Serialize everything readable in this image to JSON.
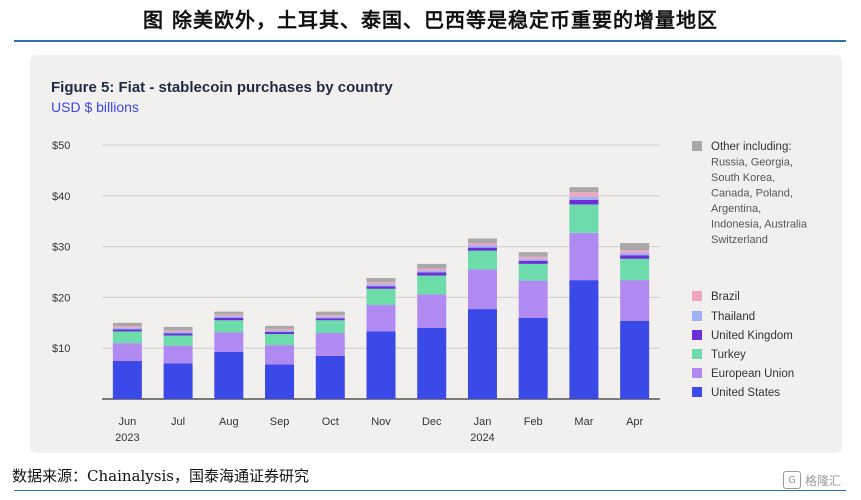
{
  "page": {
    "title": "图  除美欧外，土耳其、泰国、巴西等是稳定币重要的增量地区",
    "source": "数据来源：Chainalysis，国泰海通证券研究",
    "watermark": "格隆汇"
  },
  "chart_data": {
    "type": "bar",
    "stacked": true,
    "title": "Figure 5: Fiat - stablecoin purchases by country",
    "subtitle": "USD $ billions",
    "xlabel": "",
    "ylabel": "",
    "ylim": [
      0,
      50
    ],
    "yticks": [
      10,
      20,
      30,
      40,
      50
    ],
    "ytick_labels": [
      "$10",
      "$20",
      "$30",
      "$40",
      "$50"
    ],
    "grid": true,
    "legend_position": "right",
    "categories": [
      "Jun",
      "Jul",
      "Aug",
      "Sep",
      "Oct",
      "Nov",
      "Dec",
      "Jan",
      "Feb",
      "Mar",
      "Apr"
    ],
    "category_sublabels": [
      "2023",
      "",
      "",
      "",
      "",
      "",
      "",
      "2024",
      "",
      "",
      ""
    ],
    "colors": {
      "United States": "#3a49e8",
      "European Union": "#b08af0",
      "Turkey": "#6cdcaa",
      "United Kingdom": "#6a2fd6",
      "Thailand": "#9fb0f5",
      "Brazil": "#f0a6c0",
      "Other": "#a8a8a8"
    },
    "series": [
      {
        "name": "United States",
        "values": [
          7.5,
          7.0,
          9.3,
          6.8,
          8.5,
          13.3,
          14.0,
          17.7,
          16.0,
          23.4,
          15.4
        ]
      },
      {
        "name": "European Union",
        "values": [
          3.5,
          3.5,
          3.8,
          3.8,
          4.5,
          5.2,
          6.6,
          7.8,
          7.3,
          9.3,
          8.0
        ]
      },
      {
        "name": "Turkey",
        "values": [
          2.3,
          2.0,
          2.4,
          2.2,
          2.5,
          3.2,
          3.7,
          3.7,
          3.3,
          5.6,
          4.2
        ]
      },
      {
        "name": "United Kingdom",
        "values": [
          0.4,
          0.4,
          0.5,
          0.4,
          0.4,
          0.5,
          0.6,
          0.6,
          0.6,
          0.9,
          0.7
        ]
      },
      {
        "name": "Thailand",
        "values": [
          0.3,
          0.3,
          0.3,
          0.3,
          0.3,
          0.4,
          0.4,
          0.5,
          0.4,
          0.6,
          0.5
        ]
      },
      {
        "name": "Brazil",
        "values": [
          0.3,
          0.3,
          0.3,
          0.3,
          0.3,
          0.4,
          0.4,
          0.4,
          0.4,
          0.9,
          0.5
        ]
      },
      {
        "name": "Other",
        "values": [
          0.7,
          0.7,
          0.6,
          0.6,
          0.7,
          0.8,
          0.9,
          0.9,
          0.9,
          1.0,
          1.4
        ]
      }
    ],
    "legend": [
      {
        "key": "Other",
        "label": "Other including:",
        "detail": [
          "Russia, Georgia,",
          "South Korea,",
          "Canada, Poland,",
          "Argentina,",
          "Indonesia, Australia",
          "Switzerland"
        ]
      },
      {
        "key": "Brazil",
        "label": "Brazil"
      },
      {
        "key": "Thailand",
        "label": "Thailand"
      },
      {
        "key": "United Kingdom",
        "label": "United Kingdom"
      },
      {
        "key": "Turkey",
        "label": "Turkey"
      },
      {
        "key": "European Union",
        "label": "European Union"
      },
      {
        "key": "United States",
        "label": "United States"
      }
    ]
  }
}
